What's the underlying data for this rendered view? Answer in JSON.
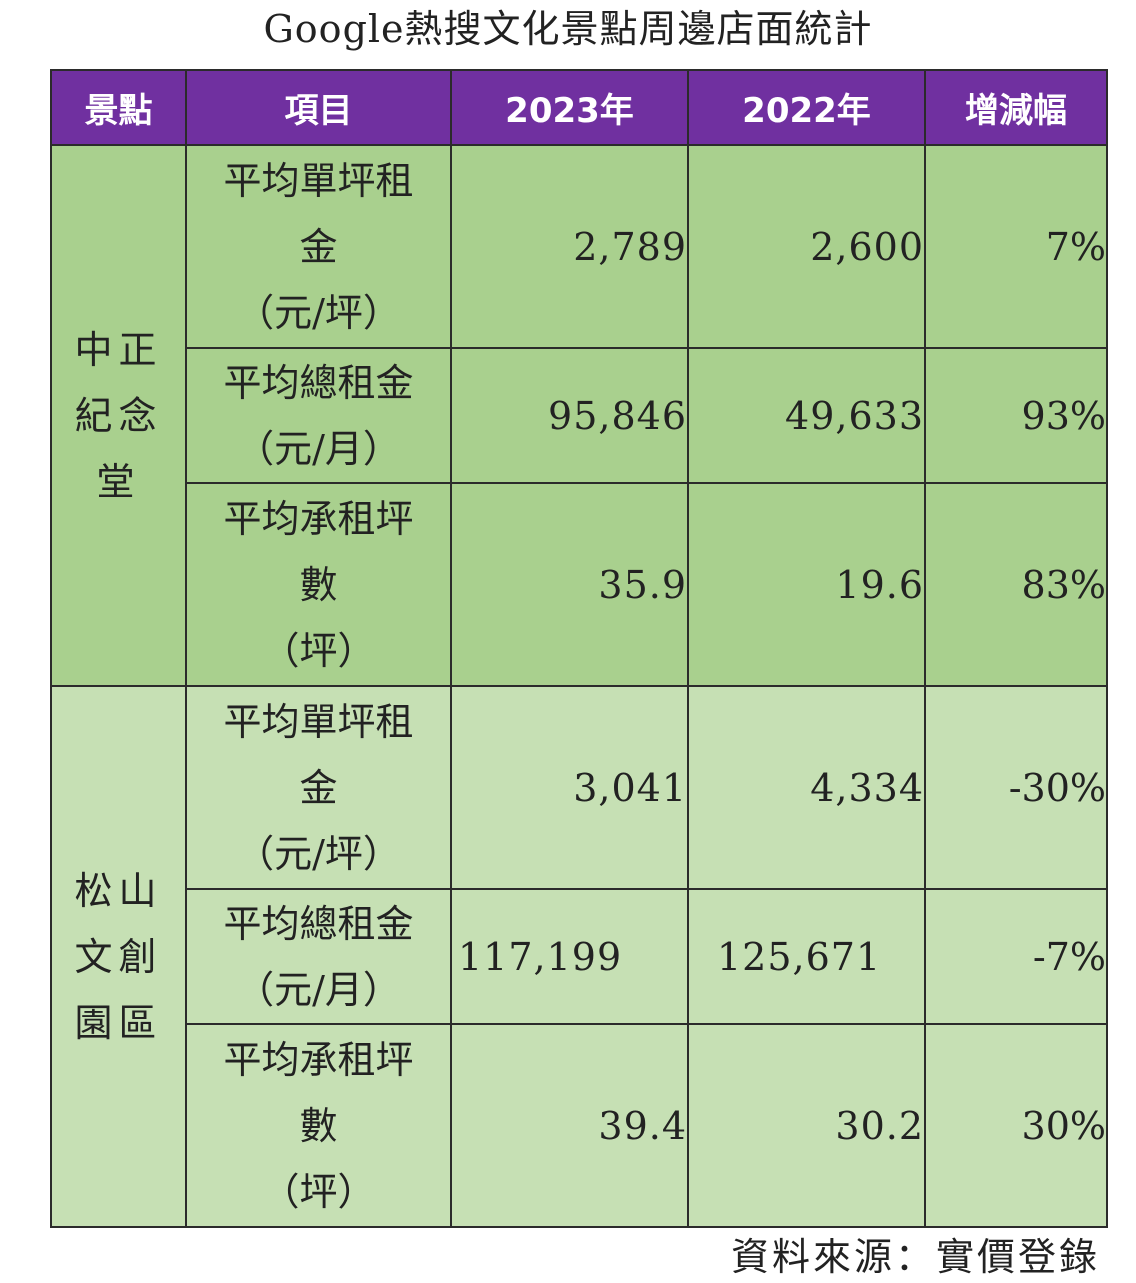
{
  "title": "Google熱搜文化景點周邊店面統計",
  "headers": {
    "place": "景點",
    "item": "項目",
    "y2023": "2023年",
    "y2022": "2022年",
    "change": "增減幅"
  },
  "groups": [
    {
      "place": "中正紀念堂",
      "rows": [
        {
          "item_line1": "平均單坪租",
          "item_line2": "金",
          "item_line3": "（元/坪）",
          "y2023": "2,789",
          "y2022": "2,600",
          "change": "7%"
        },
        {
          "item_line1": "平均總租金",
          "item_line2": "（元/月）",
          "y2023": "95,846",
          "y2022": "49,633",
          "change": "93%"
        },
        {
          "item_line1": "平均承租坪",
          "item_line2": "數",
          "item_line3": "（坪）",
          "y2023": "35.9",
          "y2022": "19.6",
          "change": "83%"
        }
      ]
    },
    {
      "place": "松山文創園區",
      "rows": [
        {
          "item_line1": "平均單坪租",
          "item_line2": "金",
          "item_line3": "（元/坪）",
          "y2023": "3,041",
          "y2022": "4,334",
          "change": "-30%"
        },
        {
          "item_line1": "平均總租金",
          "item_line2": "（元/月）",
          "y2023": "117,199",
          "y2022": "125,671",
          "change": "-7%"
        },
        {
          "item_line1": "平均承租坪",
          "item_line2": "數",
          "item_line3": "（坪）",
          "y2023": "39.4",
          "y2022": "30.2",
          "change": "30%"
        }
      ]
    }
  ],
  "source": "資料來源：實價登錄",
  "colors": {
    "header_bg": "#7030a0",
    "group1_bg": "#a9d08e",
    "group2_bg": "#c6e0b4"
  }
}
